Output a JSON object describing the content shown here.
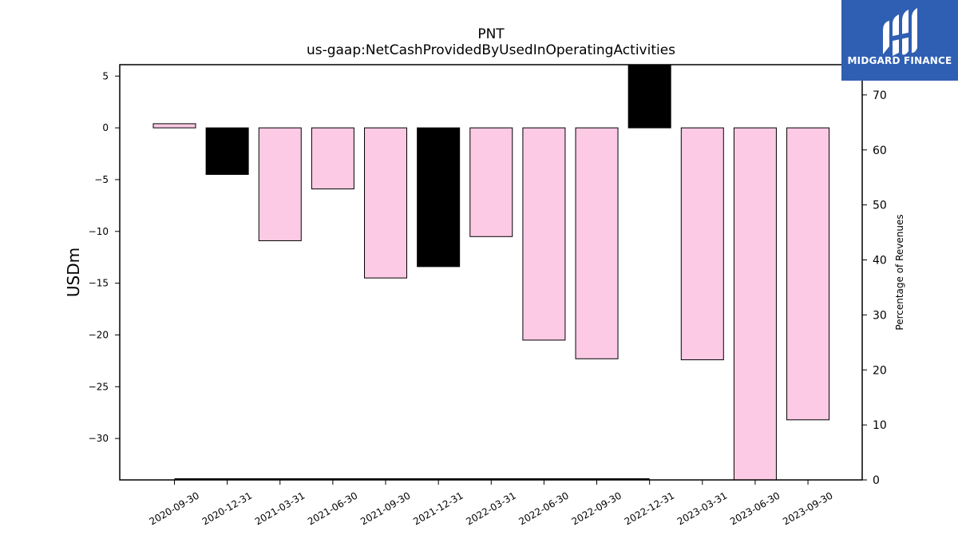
{
  "chart_data": {
    "type": "bar",
    "title": "PNT",
    "subtitle": "us-gaap:NetCashProvidedByUsedInOperatingActivities",
    "ylabel": "USDm",
    "y2label": "Percentage of Revenues",
    "ylim": [
      -34,
      6.1
    ],
    "y2lim": [
      0,
      75.5
    ],
    "yticks": [
      5,
      0,
      -5,
      -10,
      -15,
      -20,
      -25,
      -30
    ],
    "y2ticks": [
      0,
      10,
      20,
      30,
      40,
      50,
      60,
      70
    ],
    "categories": [
      "2020-09-30",
      "2020-12-31",
      "2021-03-31",
      "2021-06-30",
      "2021-09-30",
      "2021-12-31",
      "2022-03-31",
      "2022-06-30",
      "2022-09-30",
      "2022-12-31",
      "2023-03-31",
      "2023-06-30",
      "2023-09-30"
    ],
    "values": [
      0.4,
      -4.5,
      -10.9,
      -5.9,
      -14.5,
      -13.4,
      -10.5,
      -20.5,
      -22.3,
      6.1,
      -22.4,
      -34.0,
      -28.2
    ],
    "bar_colors": [
      "#fccae4",
      "#000000",
      "#fccae4",
      "#fccae4",
      "#fccae4",
      "#000000",
      "#fccae4",
      "#fccae4",
      "#fccae4",
      "#000000",
      "#fccae4",
      "#fccae4",
      "#fccae4"
    ],
    "secondary_line": {
      "x_from": "2020-09-30",
      "x_to": "2022-12-31",
      "value": 0
    },
    "grid": false
  },
  "logo": {
    "text": "MIDGARD FINANCE",
    "color": "#2f5fb3"
  }
}
